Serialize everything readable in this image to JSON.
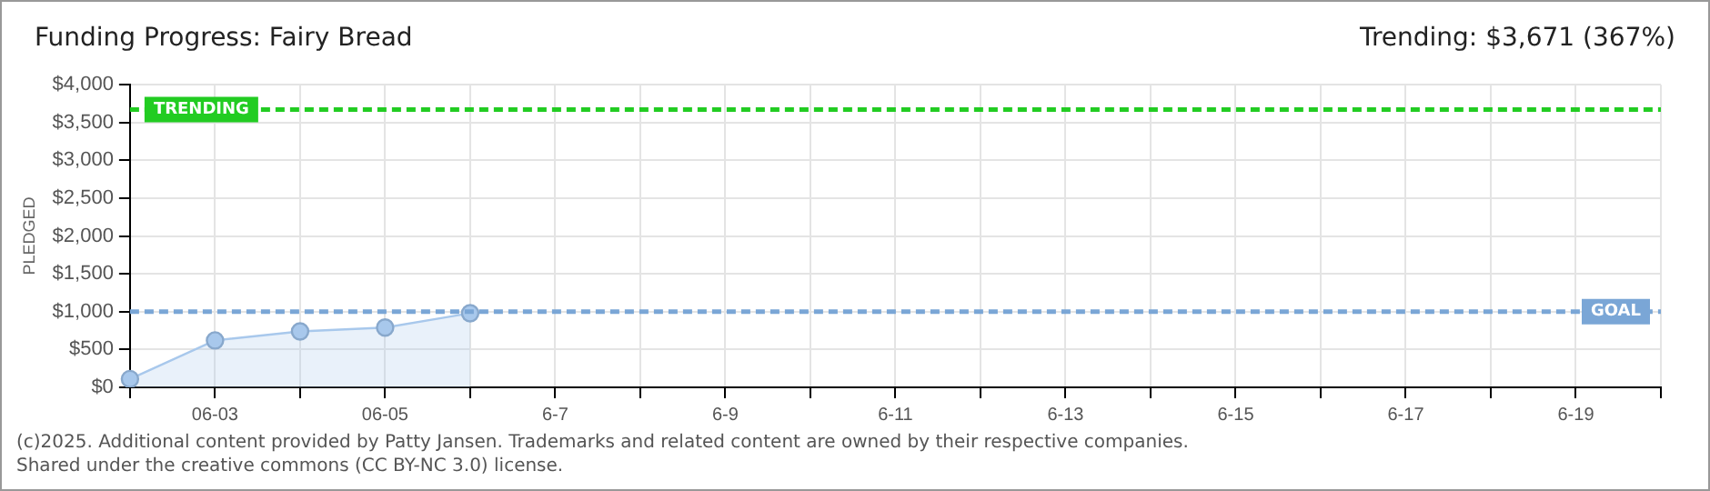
{
  "chart_data": {
    "type": "area",
    "title": "Funding Progress: Fairy Bread",
    "subtitle": "Trending: $3,671 (367%)",
    "ylabel": "PLEDGED",
    "categories": [
      null,
      "06-03",
      null,
      "06-05",
      null,
      "6-7",
      null,
      "6-9",
      null,
      "6-11",
      null,
      "6-13",
      null,
      "6-15",
      null,
      "6-17",
      null,
      "6-19",
      null
    ],
    "series": [
      {
        "color": "#a8c8ec",
        "values": [
          110,
          620,
          740,
          790,
          980,
          null,
          null,
          null,
          null,
          null,
          null,
          null,
          null,
          null,
          null,
          null,
          null,
          null,
          null
        ]
      }
    ],
    "ylim": [
      0,
      4000
    ],
    "yticks": [
      {
        "value": 0,
        "label": "$0"
      },
      {
        "value": 500,
        "label": "$500"
      },
      {
        "value": 1000,
        "label": "$1,000"
      },
      {
        "value": 1500,
        "label": "$1,500"
      },
      {
        "value": 2000,
        "label": "$2,000"
      },
      {
        "value": 2500,
        "label": "$2,500"
      },
      {
        "value": 3000,
        "label": "$3,000"
      },
      {
        "value": 3500,
        "label": "$3,500"
      },
      {
        "value": 4000,
        "label": "$4,000"
      }
    ],
    "ref_lines": [
      {
        "axis": "y",
        "value": 3671,
        "label": "TRENDING",
        "color": "#22cc22",
        "line_style": "dashed"
      },
      {
        "axis": "y",
        "value": 1000,
        "label": "GOAL",
        "color": "#7aa6d6",
        "line_style": "dashed"
      }
    ],
    "grid": true,
    "legend": false,
    "marker": "circle",
    "line_style": "solid",
    "annotations": [
      "(c)2025. Additional content provided by Patty Jansen. Trademarks and related content are owned by their respective companies.",
      "Shared under the creative commons (CC BY-NC 3.0) license."
    ]
  }
}
